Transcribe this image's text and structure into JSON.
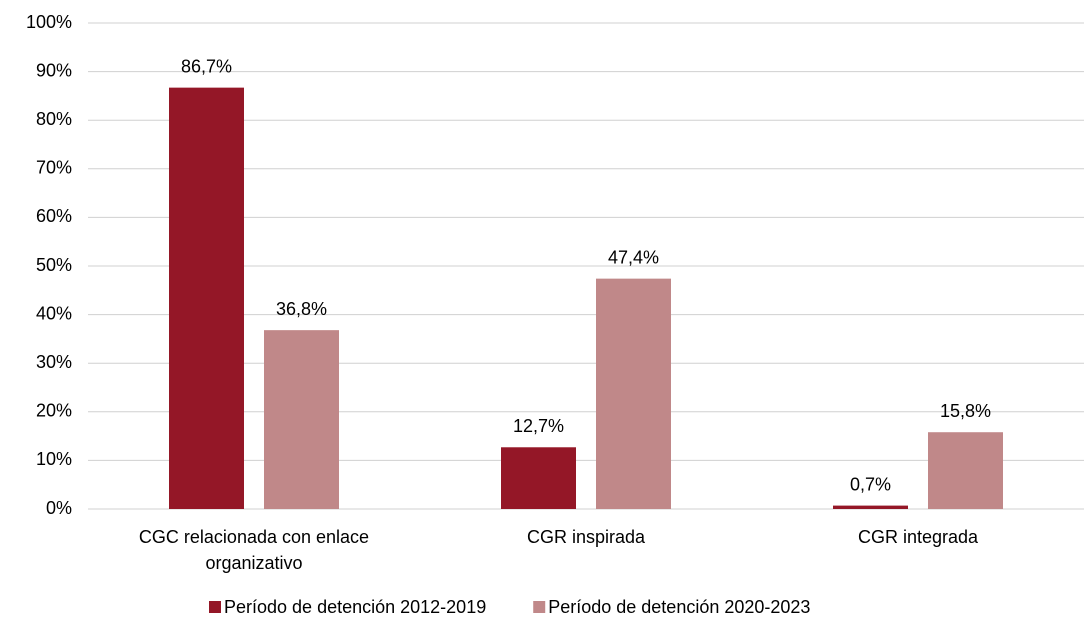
{
  "chart_data": {
    "type": "bar",
    "categories": [
      "CGC relacionada con enlace organizativo",
      "CGR inspirada",
      "CGR integrada"
    ],
    "series": [
      {
        "name": "Período de detención 2012-2019",
        "color": "#941727",
        "values": [
          86.7,
          12.7,
          0.7
        ],
        "value_labels": [
          "86,7%",
          "12,7%",
          "0,7%"
        ]
      },
      {
        "name": "Período de detención 2020-2023",
        "color": "#c08889",
        "values": [
          36.8,
          47.4,
          15.8
        ],
        "value_labels": [
          "36,8%",
          "47,4%",
          "15,8%"
        ]
      }
    ],
    "ylim": [
      0,
      100
    ],
    "yticks": [
      {
        "value": 0,
        "label": "0%"
      },
      {
        "value": 10,
        "label": "10%"
      },
      {
        "value": 20,
        "label": "20%"
      },
      {
        "value": 30,
        "label": "30%"
      },
      {
        "value": 40,
        "label": "40%"
      },
      {
        "value": 50,
        "label": "50%"
      },
      {
        "value": 60,
        "label": "60%"
      },
      {
        "value": 70,
        "label": "70%"
      },
      {
        "value": 80,
        "label": "80%"
      },
      {
        "value": 90,
        "label": "90%"
      },
      {
        "value": 100,
        "label": "100%"
      }
    ],
    "grid": true,
    "legend": "bottom"
  }
}
